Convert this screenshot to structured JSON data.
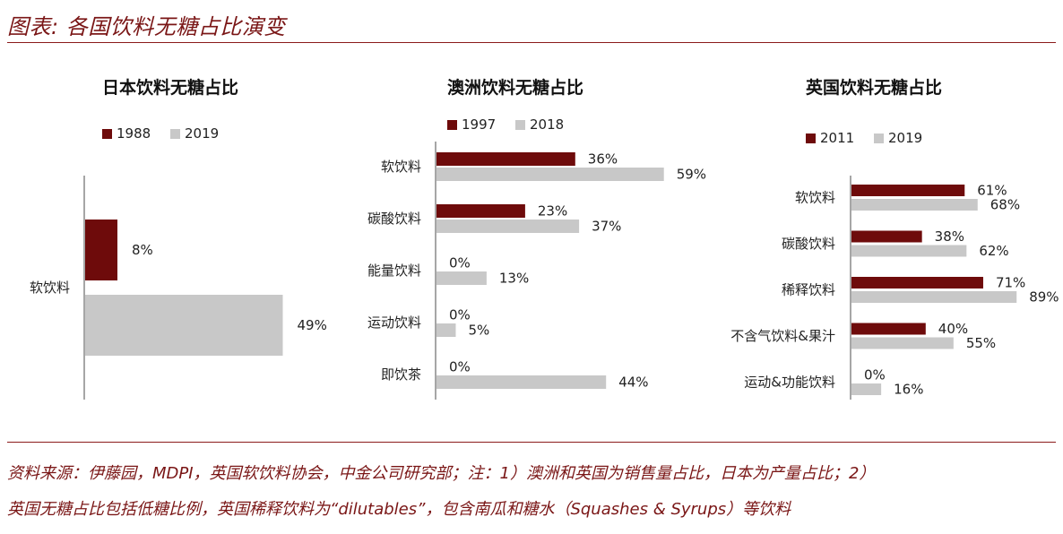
{
  "header": {
    "title": "图表: 各国饮料无糖占比演变"
  },
  "footer": {
    "line1": "资料来源：伊藤园，MDPI，英国软饮料协会，中金公司研究部；注：1）澳洲和英国为销售量占比，日本为产量占比；2）",
    "line2": "英国无糖占比包括低糖比例，英国稀释饮料为“dilutables”，包含南瓜和糖水（Squashes & Syrups）等饮料"
  },
  "colors": {
    "series1": "#6e0b0b",
    "series2": "#c8c8c8",
    "accent": "#7a1616"
  },
  "chart_data": [
    {
      "type": "bar",
      "orientation": "horizontal",
      "title": "日本饮料无糖占比",
      "categories": [
        "软饮料"
      ],
      "series": [
        {
          "name": "1988",
          "values": [
            8
          ],
          "labels": [
            "8%"
          ]
        },
        {
          "name": "2019",
          "values": [
            49
          ],
          "labels": [
            "49%"
          ]
        }
      ],
      "xlim": [
        0,
        100
      ],
      "legend": "top"
    },
    {
      "type": "bar",
      "orientation": "horizontal",
      "title": "澳洲饮料无糖占比",
      "categories": [
        "软饮料",
        "碳酸饮料",
        "能量饮料",
        "运动饮料",
        "即饮茶"
      ],
      "series": [
        {
          "name": "1997",
          "values": [
            36,
            23,
            0,
            0,
            0
          ],
          "labels": [
            "36%",
            "23%",
            "0%",
            "0%",
            "0%"
          ]
        },
        {
          "name": "2018",
          "values": [
            59,
            37,
            13,
            5,
            44
          ],
          "labels": [
            "59%",
            "37%",
            "13%",
            "5%",
            "44%"
          ]
        }
      ],
      "xlim": [
        0,
        100
      ],
      "legend": "top"
    },
    {
      "type": "bar",
      "orientation": "horizontal",
      "title": "英国饮料无糖占比",
      "categories": [
        "软饮料",
        "碳酸饮料",
        "稀释饮料",
        "不含气饮料&果汁",
        "运动&功能饮料"
      ],
      "series": [
        {
          "name": "2011",
          "values": [
            61,
            38,
            71,
            40,
            0
          ],
          "labels": [
            "61%",
            "38%",
            "71%",
            "40%",
            "0%"
          ]
        },
        {
          "name": "2019",
          "values": [
            68,
            62,
            89,
            55,
            16
          ],
          "labels": [
            "68%",
            "62%",
            "89%",
            "55%",
            "16%"
          ]
        }
      ],
      "xlim": [
        0,
        100
      ],
      "legend": "top"
    }
  ]
}
